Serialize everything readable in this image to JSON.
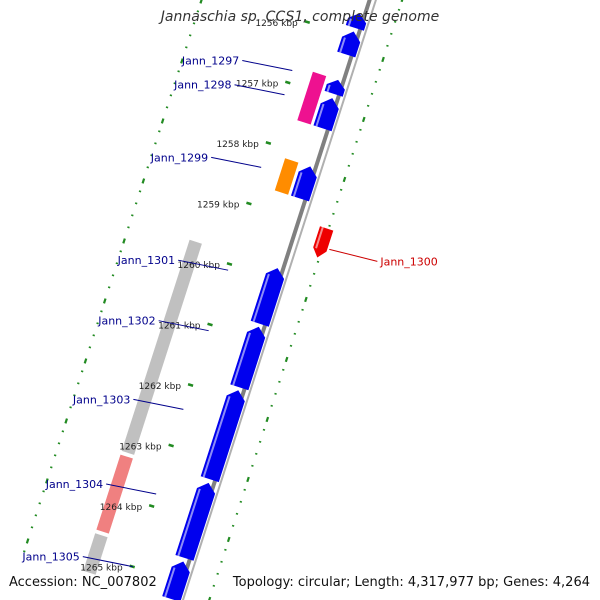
{
  "title": "Jannaschia sp. CCS1, complete genome",
  "footer": {
    "accession": "Accession: NC_007802",
    "summary": "Topology: circular; Length: 4,317,977 bp; Genes: 4,264"
  },
  "colors": {
    "forward_gene": "#0000ee",
    "reverse_gene": "#ee0000",
    "highlight_pink": "#ee1190",
    "highlight_orange": "#ff8c00",
    "label_blue": "#00008b",
    "label_red": "#cc0000",
    "tick_green": "#228b22",
    "backbone": "#808080",
    "band_gray": "#c0c0c0",
    "band_pink": "#f08080"
  },
  "scale_ticks": [
    {
      "label": "1256 kbp"
    },
    {
      "label": "1257 kbp"
    },
    {
      "label": "1258 kbp"
    },
    {
      "label": "1259 kbp"
    },
    {
      "label": "1260 kbp"
    },
    {
      "label": "1261 kbp"
    },
    {
      "label": "1262 kbp"
    },
    {
      "label": "1263 kbp"
    },
    {
      "label": "1264 kbp"
    },
    {
      "label": "1265 kbp"
    }
  ],
  "genes": [
    {
      "name": "",
      "strand": "+",
      "color": "#0000ee",
      "start_kbp": 1255.62,
      "end_kbp": 1255.86
    },
    {
      "name": "",
      "strand": "+",
      "color": "#0000ee",
      "start_kbp": 1255.92,
      "end_kbp": 1256.3
    },
    {
      "name": "Jann_1297",
      "strand": "+",
      "color": "#0000ee",
      "start_kbp": 1256.72,
      "end_kbp": 1256.95
    },
    {
      "name": "Jann_1298",
      "strand": "+",
      "color": "#0000ee",
      "start_kbp": 1257.02,
      "end_kbp": 1257.52
    },
    {
      "name": "",
      "strand": "+",
      "color": "#0000ee",
      "start_kbp": 1258.15,
      "end_kbp": 1258.68
    },
    {
      "name": "Jann_1300",
      "strand": "-",
      "color": "#ee0000",
      "start_kbp": 1259.0,
      "end_kbp": 1259.48
    },
    {
      "name": "",
      "strand": "+",
      "color": "#0000ee",
      "start_kbp": 1259.83,
      "end_kbp": 1260.75
    },
    {
      "name": "",
      "strand": "+",
      "color": "#0000ee",
      "start_kbp": 1260.8,
      "end_kbp": 1261.8
    },
    {
      "name": "",
      "strand": "+",
      "color": "#0000ee",
      "start_kbp": 1261.85,
      "end_kbp": 1263.32
    },
    {
      "name": "",
      "strand": "+",
      "color": "#0000ee",
      "start_kbp": 1263.38,
      "end_kbp": 1264.62
    },
    {
      "name": "",
      "strand": "+",
      "color": "#0000ee",
      "start_kbp": 1264.68,
      "end_kbp": 1265.3
    }
  ],
  "highlights": [
    {
      "name": "",
      "color": "#ee1190",
      "start_kbp": 1256.72,
      "end_kbp": 1257.52
    },
    {
      "name": "Jann_1299",
      "color": "#ff8c00",
      "start_kbp": 1258.15,
      "end_kbp": 1258.68
    }
  ],
  "bands": [
    {
      "name": "Jann_1301",
      "color": "#c0c0c0",
      "start_kbp": 1259.83,
      "end_kbp": 1263.32
    },
    {
      "name": "Jann_1304",
      "color": "#f08080",
      "start_kbp": 1263.38,
      "end_kbp": 1264.62
    },
    {
      "name": "Jann_1305",
      "color": "#c0c0c0",
      "start_kbp": 1264.68,
      "end_kbp": 1265.3
    }
  ],
  "labels": [
    {
      "text": "Jann_1297",
      "color": "#00008b",
      "side": "left",
      "kbp": 1256.8
    },
    {
      "text": "Jann_1298",
      "color": "#00008b",
      "side": "left",
      "kbp": 1257.2
    },
    {
      "text": "Jann_1299",
      "color": "#00008b",
      "side": "left",
      "kbp": 1258.4
    },
    {
      "text": "Jann_1300",
      "color": "#cc0000",
      "side": "right",
      "kbp": 1259.3
    },
    {
      "text": "Jann_1301",
      "color": "#00008b",
      "side": "left",
      "kbp": 1260.1
    },
    {
      "text": "Jann_1302",
      "color": "#00008b",
      "side": "left",
      "kbp": 1261.1
    },
    {
      "text": "Jann_1303",
      "color": "#00008b",
      "side": "left",
      "kbp": 1262.4
    },
    {
      "text": "Jann_1304",
      "color": "#00008b",
      "side": "left",
      "kbp": 1263.8
    },
    {
      "text": "Jann_1305",
      "color": "#00008b",
      "side": "left",
      "kbp": 1265.0
    }
  ]
}
